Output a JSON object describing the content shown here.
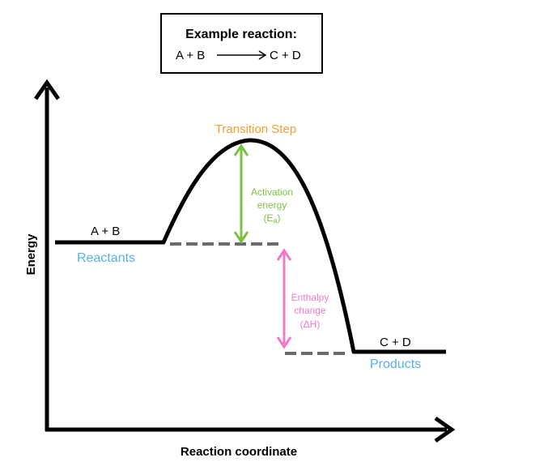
{
  "example_box": {
    "title": "Example reaction:",
    "reactants": "A + B",
    "products": "C + D"
  },
  "axes": {
    "y_label": "Energy",
    "x_label": "Reaction coordinate"
  },
  "reactants": {
    "formula": "A + B",
    "name": "Reactants"
  },
  "products": {
    "formula": "C + D",
    "name": "Products"
  },
  "transition": {
    "name": "Transition Step"
  },
  "activation": {
    "line1": "Activation",
    "line2": "energy",
    "line3_main": "(E",
    "line3_sub": "a",
    "line3_end": ")"
  },
  "enthalpy": {
    "line1": "Enthalpy",
    "line2": "change",
    "line3": "(ΔH)"
  },
  "colors": {
    "curve": "#000000",
    "reactants_label": "#5aaee8",
    "products_label": "#5aaee8",
    "transition_label": "#f0a030",
    "activation": "#7cc242",
    "enthalpy": "#f07ac8",
    "dashes": "#6b6b6b"
  }
}
